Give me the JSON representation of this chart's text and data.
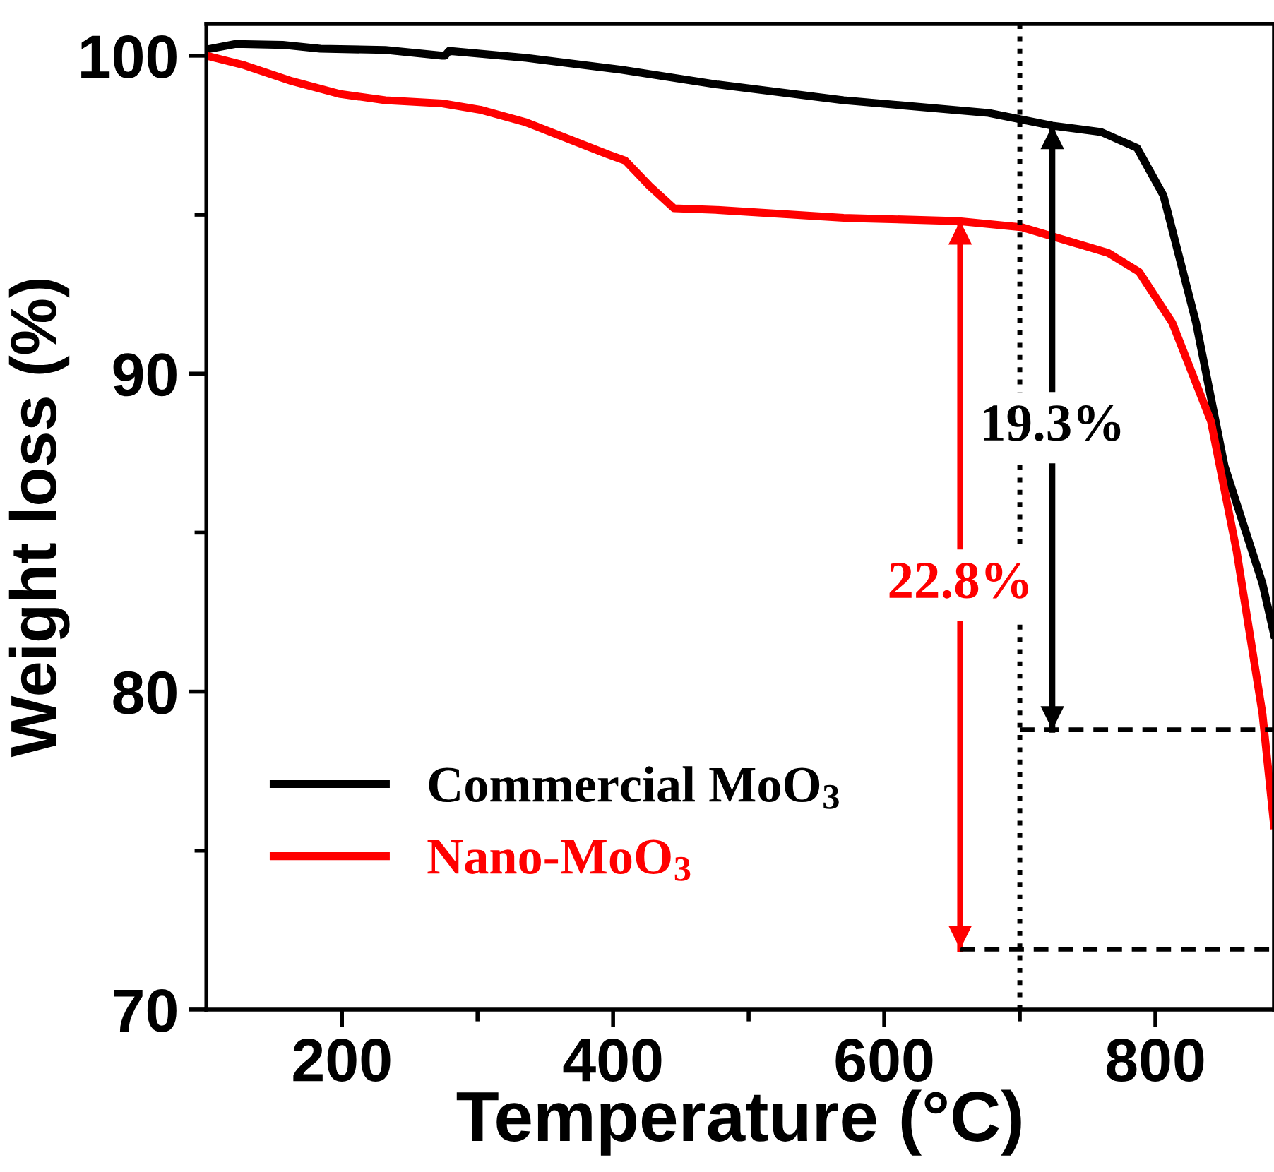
{
  "chart_data": {
    "type": "line",
    "xlabel": "Temperature (°C)",
    "ylabel": "Weight loss (%)",
    "xlim": [
      100,
      887.5
    ],
    "ylim": [
      70,
      101
    ],
    "xticks": [
      200,
      {
        "value": 300,
        "label": null
      },
      400,
      {
        "value": 500,
        "label": null
      },
      600,
      {
        "value": 700,
        "label": null
      },
      800
    ],
    "yticks": [
      70,
      {
        "value": 75,
        "label": null
      },
      80,
      {
        "value": 85,
        "label": null
      },
      90,
      {
        "value": 95,
        "label": null
      },
      100
    ],
    "grid": false,
    "legend": "bottom left",
    "marker": "none",
    "line_style": "solid",
    "series": [
      {
        "name": "Commercial MoO$_{3}$",
        "color": "#000000",
        "x": [
          100,
          100.7,
          121.6,
          156.3,
          184,
          232,
          274,
          276,
          279,
          336,
          406,
          476,
          570,
          677,
          724,
          760,
          786.5,
          806,
          830,
          851,
          879,
          887.5
        ],
        "values": [
          100.1,
          100.2,
          100.37,
          100.34,
          100.22,
          100.18,
          100.0,
          100.0,
          100.15,
          99.93,
          99.56,
          99.1,
          98.6,
          98.2,
          97.8,
          97.6,
          97.1,
          95.6,
          91.6,
          87.1,
          83.4,
          81.8
        ]
      },
      {
        "name": "Nano-MoO$_{3}$",
        "color": "#ff0000",
        "x": [
          100,
          128,
          163,
          198,
          232,
          274,
          302,
          336,
          372,
          396,
          409,
          427,
          445,
          476,
          570,
          654,
          702,
          765,
          788,
          812.5,
          841,
          860,
          879,
          887.5
        ],
        "values": [
          100.0,
          99.7,
          99.2,
          98.8,
          98.6,
          98.5,
          98.3,
          97.9,
          97.3,
          96.9,
          96.7,
          95.9,
          95.2,
          95.15,
          94.9,
          94.8,
          94.6,
          93.8,
          93.2,
          91.6,
          88.5,
          84.4,
          79.3,
          75.8
        ]
      },
      {
        "color": "#000000",
        "x": [
          724,
          724
        ],
        "values": [
          97.8,
          78.8
        ]
      },
      {
        "color": "#ff0000",
        "x": [
          656,
          656
        ],
        "values": [
          94.8,
          71.9
        ]
      },
      {
        "color": "#000000",
        "line_style": "dashed",
        "x": [
          700,
          887.5
        ],
        "values": [
          78.8,
          78.8
        ]
      },
      {
        "color": "#000000",
        "line_style": "dashed",
        "x": [
          656,
          887.5
        ],
        "values": [
          71.9,
          71.9
        ]
      }
    ],
    "ref_lines": [
      {
        "axis": "x",
        "value": 700,
        "color": "#000000",
        "line_style": "dotted"
      }
    ],
    "annotations": [
      "19.3%",
      "22.8%"
    ]
  }
}
